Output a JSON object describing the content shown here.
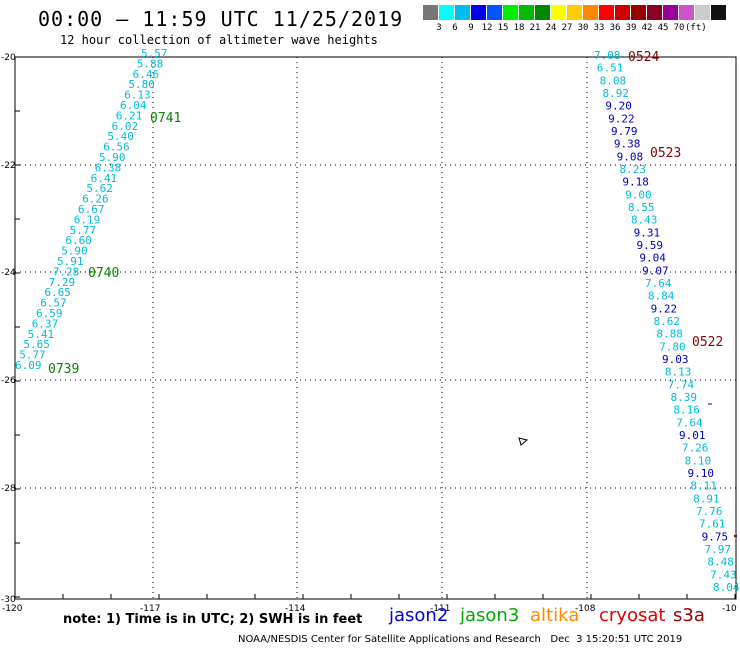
{
  "title": "00:00 – 11:59 UTC 11/25/2019",
  "subtitle": "12 hour collection of altimeter wave heights",
  "scale": {
    "colors": [
      "#777777",
      "#00ffff",
      "#00bbee",
      "#0000ee",
      "#0055ff",
      "#00ee00",
      "#00bb00",
      "#008800",
      "#ffff00",
      "#ffcc00",
      "#ff8800",
      "#ff0000",
      "#cc0000",
      "#990000",
      "#880022",
      "#990099",
      "#cc55cc",
      "#cccccc",
      "#111111"
    ],
    "labels": [
      "3",
      "6",
      "9",
      "12",
      "15",
      "18",
      "21",
      "24",
      "27",
      "30",
      "33",
      "36",
      "39",
      "42",
      "45",
      "70",
      "(ft)"
    ]
  },
  "axes": {
    "x_labels": [
      "-120",
      "-117",
      "-114",
      "-111",
      "-108",
      "-10"
    ],
    "y_labels": [
      "-20",
      "-22",
      "-24",
      "-26",
      "-28",
      "-30"
    ]
  },
  "tracks": [
    {
      "values": [
        "5.57",
        "5.88",
        "6.46",
        "5.80",
        "6.13",
        "6.04",
        "6.21",
        "6.02",
        "5.40",
        "6.56",
        "5.90",
        "6.38",
        "6.41",
        "5.62",
        "6.26",
        "6.67",
        "6.19",
        "5.77",
        "6.60",
        "5.90",
        "5.91",
        "7.28",
        "7.29",
        "6.65",
        "6.57",
        "6.59",
        "6.37",
        "5.41",
        "5.65",
        "5.77",
        "6.09"
      ],
      "colors": [
        "c",
        "c",
        "c",
        "c",
        "c",
        "c",
        "c",
        "c",
        "c",
        "c",
        "c",
        "c",
        "c",
        "c",
        "c",
        "c",
        "c",
        "c",
        "c",
        "c",
        "c",
        "c",
        "c",
        "c",
        "c",
        "c",
        "c",
        "c",
        "c",
        "c",
        "c"
      ],
      "times": [
        {
          "label": "0741",
          "color": "#008800"
        },
        {
          "label": "0740",
          "color": "#008800"
        },
        {
          "label": "0739",
          "color": "#008800"
        }
      ]
    },
    {
      "values": [
        "7.08",
        "6.51",
        "8.08",
        "8.92",
        "9.20",
        "9.22",
        "9.79",
        "9.38",
        "9.08",
        "8.23",
        "9.18",
        "9.00",
        "8.55",
        "8.43",
        "9.31",
        "9.59",
        "9.04",
        "9.07",
        "7.64",
        "8.84",
        "9.22",
        "8.62",
        "8.88",
        "7.80",
        "9.03",
        "8.13",
        "7.74",
        "8.39",
        "8.16",
        "7.64",
        "9.01",
        "7.26",
        "8.10",
        "9.10",
        "8.11",
        "8.91",
        "7.76",
        "7.61",
        "9.75",
        "7.97",
        "8.48",
        "7.43",
        "8.04"
      ],
      "colors": [
        "c",
        "c",
        "c",
        "c",
        "b",
        "b",
        "b",
        "b",
        "b",
        "c",
        "b",
        "c",
        "c",
        "c",
        "b",
        "b",
        "b",
        "b",
        "c",
        "c",
        "b",
        "c",
        "c",
        "c",
        "b",
        "c",
        "c",
        "c",
        "c",
        "c",
        "b",
        "c",
        "c",
        "b",
        "c",
        "c",
        "c",
        "c",
        "b",
        "c",
        "c",
        "c",
        "c"
      ],
      "times": [
        {
          "label": "0524",
          "color": "#880000"
        },
        {
          "label": "0523",
          "color": "#880000"
        },
        {
          "label": "0522",
          "color": "#880000"
        }
      ]
    }
  ],
  "satellites": [
    {
      "name": "jason2",
      "color": "#0000dd"
    },
    {
      "name": "jason3",
      "color": "#00aa00"
    },
    {
      "name": "altika",
      "color": "#ff8800"
    },
    {
      "name": "cryosat",
      "color": "#dd0000"
    },
    {
      "name": "s3a",
      "color": "#990000"
    }
  ],
  "note": "note: 1) Time is in UTC; 2) SWH is in feet",
  "footer": "NOAA/NESDIS Center for Satellite Applications and Research   Dec  3 15:20:51 UTC 2019"
}
